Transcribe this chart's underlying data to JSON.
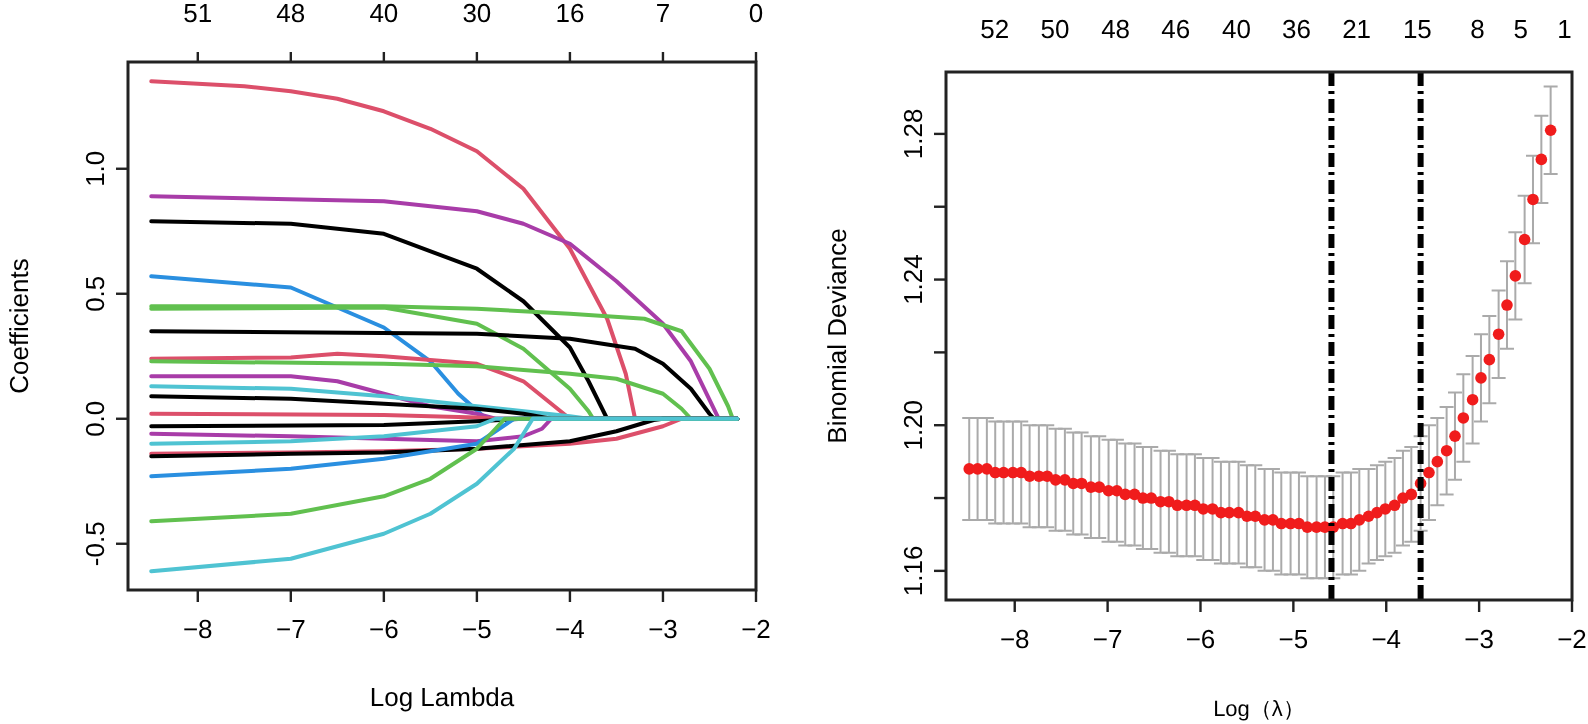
{
  "chart_data": [
    {
      "type": "line",
      "xlabel": "Log Lambda",
      "ylabel": "Coefficients",
      "marker": "none",
      "xlim": [
        -8.75,
        -2.0
      ],
      "ylim": [
        -0.685,
        1.427
      ],
      "xticks": [
        -8,
        -7,
        -6,
        -5,
        -4,
        -3,
        -2
      ],
      "yticks": [
        {
          "value": -0.5,
          "label": "-0.5"
        },
        {
          "value": 0,
          "label": "0.0"
        },
        {
          "value": 0.5,
          "label": "0.5"
        },
        {
          "value": 1.0,
          "label": "1.0"
        }
      ],
      "annotations": [
        "51",
        "48",
        "40",
        "30",
        "16",
        "7",
        "0"
      ],
      "series": [
        {
          "color": "#dc4f6a",
          "x": [
            -8.5,
            -7.5,
            -7,
            -6.5,
            -6,
            -5.5,
            -5,
            -4.5,
            -4,
            -3.6,
            -3.4,
            -3.3,
            -2.2
          ],
          "values": [
            1.35,
            1.33,
            1.31,
            1.28,
            1.23,
            1.16,
            1.07,
            0.92,
            0.68,
            0.4,
            0.18,
            0,
            0
          ]
        },
        {
          "color": "#a83ca8",
          "x": [
            -8.5,
            -6,
            -5,
            -4.5,
            -4,
            -3.5,
            -3,
            -2.7,
            -2.4,
            -2.2
          ],
          "values": [
            0.89,
            0.87,
            0.83,
            0.78,
            0.7,
            0.55,
            0.38,
            0.23,
            0,
            0
          ]
        },
        {
          "color": "#000000",
          "x": [
            -8.5,
            -7,
            -6,
            -5,
            -4.5,
            -4,
            -3.8,
            -3.6,
            -2.2
          ],
          "values": [
            0.79,
            0.78,
            0.74,
            0.6,
            0.47,
            0.285,
            0.15,
            0,
            0
          ]
        },
        {
          "color": "#2a8fe0",
          "x": [
            -8.5,
            -7,
            -6,
            -5.5,
            -5.2,
            -4.9,
            -2.2
          ],
          "values": [
            0.57,
            0.525,
            0.365,
            0.23,
            0.1,
            0,
            0
          ]
        },
        {
          "color": "#61c04f",
          "x": [
            -8.5,
            -6,
            -5,
            -4,
            -3.2,
            -2.8,
            -2.5,
            -2.3,
            -2.25,
            -2.2
          ],
          "values": [
            0.45,
            0.45,
            0.44,
            0.42,
            0.4,
            0.35,
            0.2,
            0.05,
            0,
            0
          ]
        },
        {
          "color": "#61c04f",
          "x": [
            -8.5,
            -6,
            -5,
            -4.5,
            -4,
            -3.8,
            -3.75,
            -2.2
          ],
          "values": [
            0.44,
            0.445,
            0.38,
            0.28,
            0.12,
            0.03,
            0,
            0
          ]
        },
        {
          "color": "#000000",
          "x": [
            -8.5,
            -5,
            -4,
            -3.3,
            -3,
            -2.7,
            -2.5,
            -2.45,
            -2.2
          ],
          "values": [
            0.35,
            0.34,
            0.32,
            0.28,
            0.22,
            0.12,
            0.02,
            0,
            0
          ]
        },
        {
          "color": "#dc4f6a",
          "x": [
            -8.5,
            -7,
            -6.5,
            -6,
            -5,
            -4.5,
            -4.2,
            -4,
            -2.2
          ],
          "values": [
            0.24,
            0.245,
            0.26,
            0.25,
            0.22,
            0.15,
            0.06,
            0,
            0
          ]
        },
        {
          "color": "#61c04f",
          "x": [
            -8.5,
            -6,
            -5,
            -4,
            -3.5,
            -3,
            -2.8,
            -2.7,
            -2.2
          ],
          "values": [
            0.23,
            0.22,
            0.21,
            0.18,
            0.16,
            0.1,
            0.04,
            0,
            0
          ]
        },
        {
          "color": "#a83ca8",
          "x": [
            -8.5,
            -7,
            -6.5,
            -6,
            -5.5,
            -5,
            -4.8,
            -2.2
          ],
          "values": [
            0.17,
            0.17,
            0.15,
            0.1,
            0.05,
            0.02,
            0,
            0
          ]
        },
        {
          "color": "#4fc3d2",
          "x": [
            -8.5,
            -7,
            -6,
            -5,
            -4,
            -3.8,
            -2.2
          ],
          "values": [
            0.13,
            0.12,
            0.09,
            0.05,
            0.01,
            0,
            0
          ]
        },
        {
          "color": "#000000",
          "x": [
            -8.5,
            -7,
            -6,
            -5,
            -4.5,
            -4.2,
            -2.2
          ],
          "values": [
            0.09,
            0.08,
            0.06,
            0.04,
            0.02,
            0,
            0
          ]
        },
        {
          "color": "#dc4f6a",
          "x": [
            -8.5,
            -6,
            -5,
            -4.8,
            -2.2
          ],
          "values": [
            0.02,
            0.015,
            0.005,
            0,
            0
          ]
        },
        {
          "color": "#000000",
          "x": [
            -8.5,
            -6,
            -5,
            -4.5,
            -2.2
          ],
          "values": [
            -0.03,
            -0.025,
            -0.01,
            0,
            0
          ]
        },
        {
          "color": "#a83ca8",
          "x": [
            -8.5,
            -7,
            -6,
            -5,
            -4.5,
            -4.3,
            -4.2,
            -2.2
          ],
          "values": [
            -0.06,
            -0.07,
            -0.08,
            -0.09,
            -0.07,
            -0.04,
            0,
            0
          ]
        },
        {
          "color": "#4fc3d2",
          "x": [
            -8.5,
            -7,
            -6,
            -5,
            -4.8,
            -2.2
          ],
          "values": [
            -0.1,
            -0.09,
            -0.07,
            -0.03,
            0,
            0
          ]
        },
        {
          "color": "#dc4f6a",
          "x": [
            -8.5,
            -7,
            -6,
            -5,
            -4,
            -3.5,
            -3,
            -2.8,
            -2.2
          ],
          "values": [
            -0.14,
            -0.135,
            -0.13,
            -0.12,
            -0.1,
            -0.08,
            -0.03,
            0,
            0
          ]
        },
        {
          "color": "#000000",
          "x": [
            -8.5,
            -7,
            -6,
            -5,
            -4,
            -3.5,
            -3.1,
            -3,
            -2.2
          ],
          "values": [
            -0.15,
            -0.14,
            -0.135,
            -0.12,
            -0.09,
            -0.05,
            -0.005,
            0,
            0
          ]
        },
        {
          "color": "#2a8fe0",
          "x": [
            -8.5,
            -8,
            -7,
            -6,
            -5,
            -4.8,
            -4.6,
            -2.2
          ],
          "values": [
            -0.23,
            -0.22,
            -0.2,
            -0.16,
            -0.1,
            -0.05,
            0,
            0
          ]
        },
        {
          "color": "#61c04f",
          "x": [
            -8.5,
            -7,
            -6,
            -5.5,
            -5,
            -4.8,
            -4.7,
            -2.2
          ],
          "values": [
            -0.41,
            -0.38,
            -0.31,
            -0.24,
            -0.12,
            -0.04,
            0,
            0
          ]
        },
        {
          "color": "#4fc3d2",
          "x": [
            -8.5,
            -7,
            -6,
            -5.5,
            -5,
            -4.6,
            -4.4,
            -2.2
          ],
          "values": [
            -0.61,
            -0.56,
            -0.46,
            -0.38,
            -0.26,
            -0.12,
            0,
            0
          ]
        }
      ]
    },
    {
      "type": "scatter",
      "xlabel": "Log（λ）",
      "ylabel": "Binomial Deviance",
      "marker": "circle",
      "xlim": [
        -8.74,
        -2.0
      ],
      "ylim": [
        1.152,
        1.297
      ],
      "xticks": [
        -8,
        -7,
        -6,
        -5,
        -4,
        -3,
        -2
      ],
      "yticks": [
        {
          "value": 1.16,
          "label": "1.16"
        },
        {
          "value": 1.18,
          "label": null
        },
        {
          "value": 1.2,
          "label": "1.20"
        },
        {
          "value": 1.22,
          "label": null
        },
        {
          "value": 1.24,
          "label": "1.24"
        },
        {
          "value": 1.26,
          "label": null
        },
        {
          "value": 1.28,
          "label": "1.28"
        }
      ],
      "annotations": [
        "52",
        "50",
        "48",
        "46",
        "40",
        "36",
        "21",
        "15",
        "8",
        "5",
        "1"
      ],
      "ref_lines": [
        {
          "axis": "x",
          "value": -4.59,
          "color": "#000000",
          "line_style": "dashdot"
        },
        {
          "axis": "x",
          "value": -3.63,
          "color": "#000000",
          "line_style": "dashdot"
        }
      ],
      "series": [
        {
          "color": "#f01c1c",
          "x": [
            -8.49,
            -8.4,
            -8.3,
            -8.21,
            -8.12,
            -8.02,
            -7.93,
            -7.84,
            -7.74,
            -7.65,
            -7.56,
            -7.46,
            -7.37,
            -7.28,
            -7.18,
            -7.09,
            -6.99,
            -6.9,
            -6.81,
            -6.71,
            -6.62,
            -6.53,
            -6.43,
            -6.34,
            -6.25,
            -6.15,
            -6.06,
            -5.97,
            -5.87,
            -5.78,
            -5.69,
            -5.59,
            -5.5,
            -5.41,
            -5.31,
            -5.22,
            -5.13,
            -5.03,
            -4.94,
            -4.85,
            -4.75,
            -4.66,
            -4.57,
            -4.47,
            -4.38,
            -4.29,
            -4.19,
            -4.1,
            -4.01,
            -3.91,
            -3.82,
            -3.73,
            -3.63,
            -3.54,
            -3.45,
            -3.35,
            -3.26,
            -3.17,
            -3.07,
            -2.98,
            -2.89,
            -2.79,
            -2.7,
            -2.61,
            -2.51,
            -2.42,
            -2.33,
            -2.23
          ],
          "values": [
            1.188,
            1.188,
            1.188,
            1.187,
            1.187,
            1.187,
            1.187,
            1.186,
            1.186,
            1.186,
            1.185,
            1.185,
            1.184,
            1.184,
            1.183,
            1.183,
            1.182,
            1.182,
            1.181,
            1.181,
            1.18,
            1.18,
            1.179,
            1.179,
            1.178,
            1.178,
            1.178,
            1.177,
            1.177,
            1.176,
            1.176,
            1.176,
            1.175,
            1.175,
            1.174,
            1.174,
            1.173,
            1.173,
            1.173,
            1.172,
            1.172,
            1.172,
            1.172,
            1.173,
            1.173,
            1.174,
            1.175,
            1.176,
            1.177,
            1.178,
            1.18,
            1.181,
            1.184,
            1.187,
            1.19,
            1.193,
            1.197,
            1.202,
            1.207,
            1.213,
            1.218,
            1.225,
            1.233,
            1.241,
            1.251,
            1.262,
            1.273,
            1.281
          ],
          "errors": [
            0.014,
            0.014,
            0.014,
            0.014,
            0.014,
            0.014,
            0.014,
            0.014,
            0.014,
            0.014,
            0.014,
            0.014,
            0.014,
            0.014,
            0.014,
            0.014,
            0.014,
            0.014,
            0.014,
            0.014,
            0.014,
            0.014,
            0.014,
            0.014,
            0.014,
            0.014,
            0.014,
            0.014,
            0.014,
            0.014,
            0.014,
            0.014,
            0.014,
            0.014,
            0.014,
            0.014,
            0.014,
            0.014,
            0.014,
            0.014,
            0.014,
            0.014,
            0.014,
            0.014,
            0.014,
            0.014,
            0.013,
            0.013,
            0.013,
            0.013,
            0.013,
            0.013,
            0.013,
            0.013,
            0.012,
            0.012,
            0.012,
            0.012,
            0.012,
            0.012,
            0.012,
            0.012,
            0.012,
            0.012,
            0.012,
            0.012,
            0.012,
            0.012
          ]
        }
      ]
    }
  ]
}
